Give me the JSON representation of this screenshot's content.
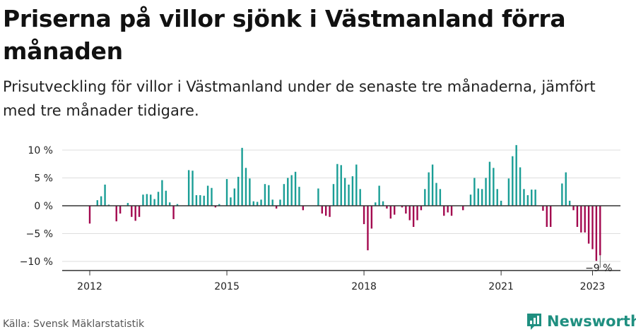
{
  "title": "Priserna på villor sjönk i Västmanland förra månaden",
  "subtitle": "Prisutveckling för villor i Västmanland under de senaste tre månaderna, jämfört med tre månader tidigare.",
  "source": "Källa: Svensk Mäklarstatistik",
  "brand": "Newsworthy",
  "colors": {
    "positive": "#1a9e96",
    "negative": "#a3094f",
    "grid": "#dddddd",
    "axis": "#333333",
    "brand": "#1f8f80"
  },
  "chart_data": {
    "type": "bar",
    "title": "",
    "xlabel": "",
    "ylabel": "",
    "ylim": [
      -11,
      11
    ],
    "y_ticks": [
      10,
      5,
      0,
      -5,
      -10
    ],
    "y_tick_labels": [
      "10 %",
      "5 %",
      "0 %",
      "−5 %",
      "−10 %"
    ],
    "x_ticks": [
      2012,
      2015,
      2018,
      2021,
      2023
    ],
    "start_year": 2012,
    "annotation": "−9 %",
    "values": [
      -3.2,
      0,
      1.0,
      1.7,
      3.8,
      0.2,
      0,
      -2.8,
      -1.4,
      0,
      0.5,
      -2.0,
      -2.7,
      -2.0,
      2.0,
      2.1,
      2.0,
      1.2,
      2.5,
      4.6,
      2.7,
      0.6,
      -2.4,
      0.3,
      0,
      0,
      6.4,
      6.3,
      1.9,
      1.9,
      1.8,
      3.6,
      3.2,
      -0.3,
      0.3,
      0,
      4.8,
      1.5,
      3.1,
      5.2,
      10.4,
      6.8,
      4.9,
      0.8,
      0.7,
      1.1,
      3.9,
      3.7,
      1.1,
      -0.5,
      1.1,
      3.9,
      5.0,
      5.5,
      6.1,
      3.4,
      -0.8,
      0,
      0,
      0,
      3.1,
      -1.4,
      -1.8,
      -2.0,
      3.9,
      7.5,
      7.3,
      5.0,
      3.8,
      5.3,
      7.4,
      3.0,
      -3.3,
      -8.0,
      -4.1,
      0.6,
      3.6,
      0.8,
      -0.5,
      -2.3,
      -1.6,
      0,
      -0.3,
      -1.4,
      -2.6,
      -3.8,
      -2.6,
      -0.8,
      3.0,
      6.0,
      7.4,
      4.1,
      3.0,
      -1.8,
      -1.2,
      -1.8,
      0,
      0,
      -0.8,
      0,
      2.0,
      5.0,
      3.1,
      3.0,
      5.0,
      7.9,
      6.8,
      3.0,
      0.9,
      0,
      4.9,
      8.9,
      10.9,
      6.9,
      3.0,
      1.9,
      2.9,
      2.9,
      0,
      -0.9,
      -3.8,
      -3.8,
      0,
      0,
      4.0,
      6.0,
      0.9,
      -0.8,
      -3.8,
      -4.8,
      -4.8,
      -6.8,
      -7.8,
      -9.9,
      -8.9
    ]
  }
}
